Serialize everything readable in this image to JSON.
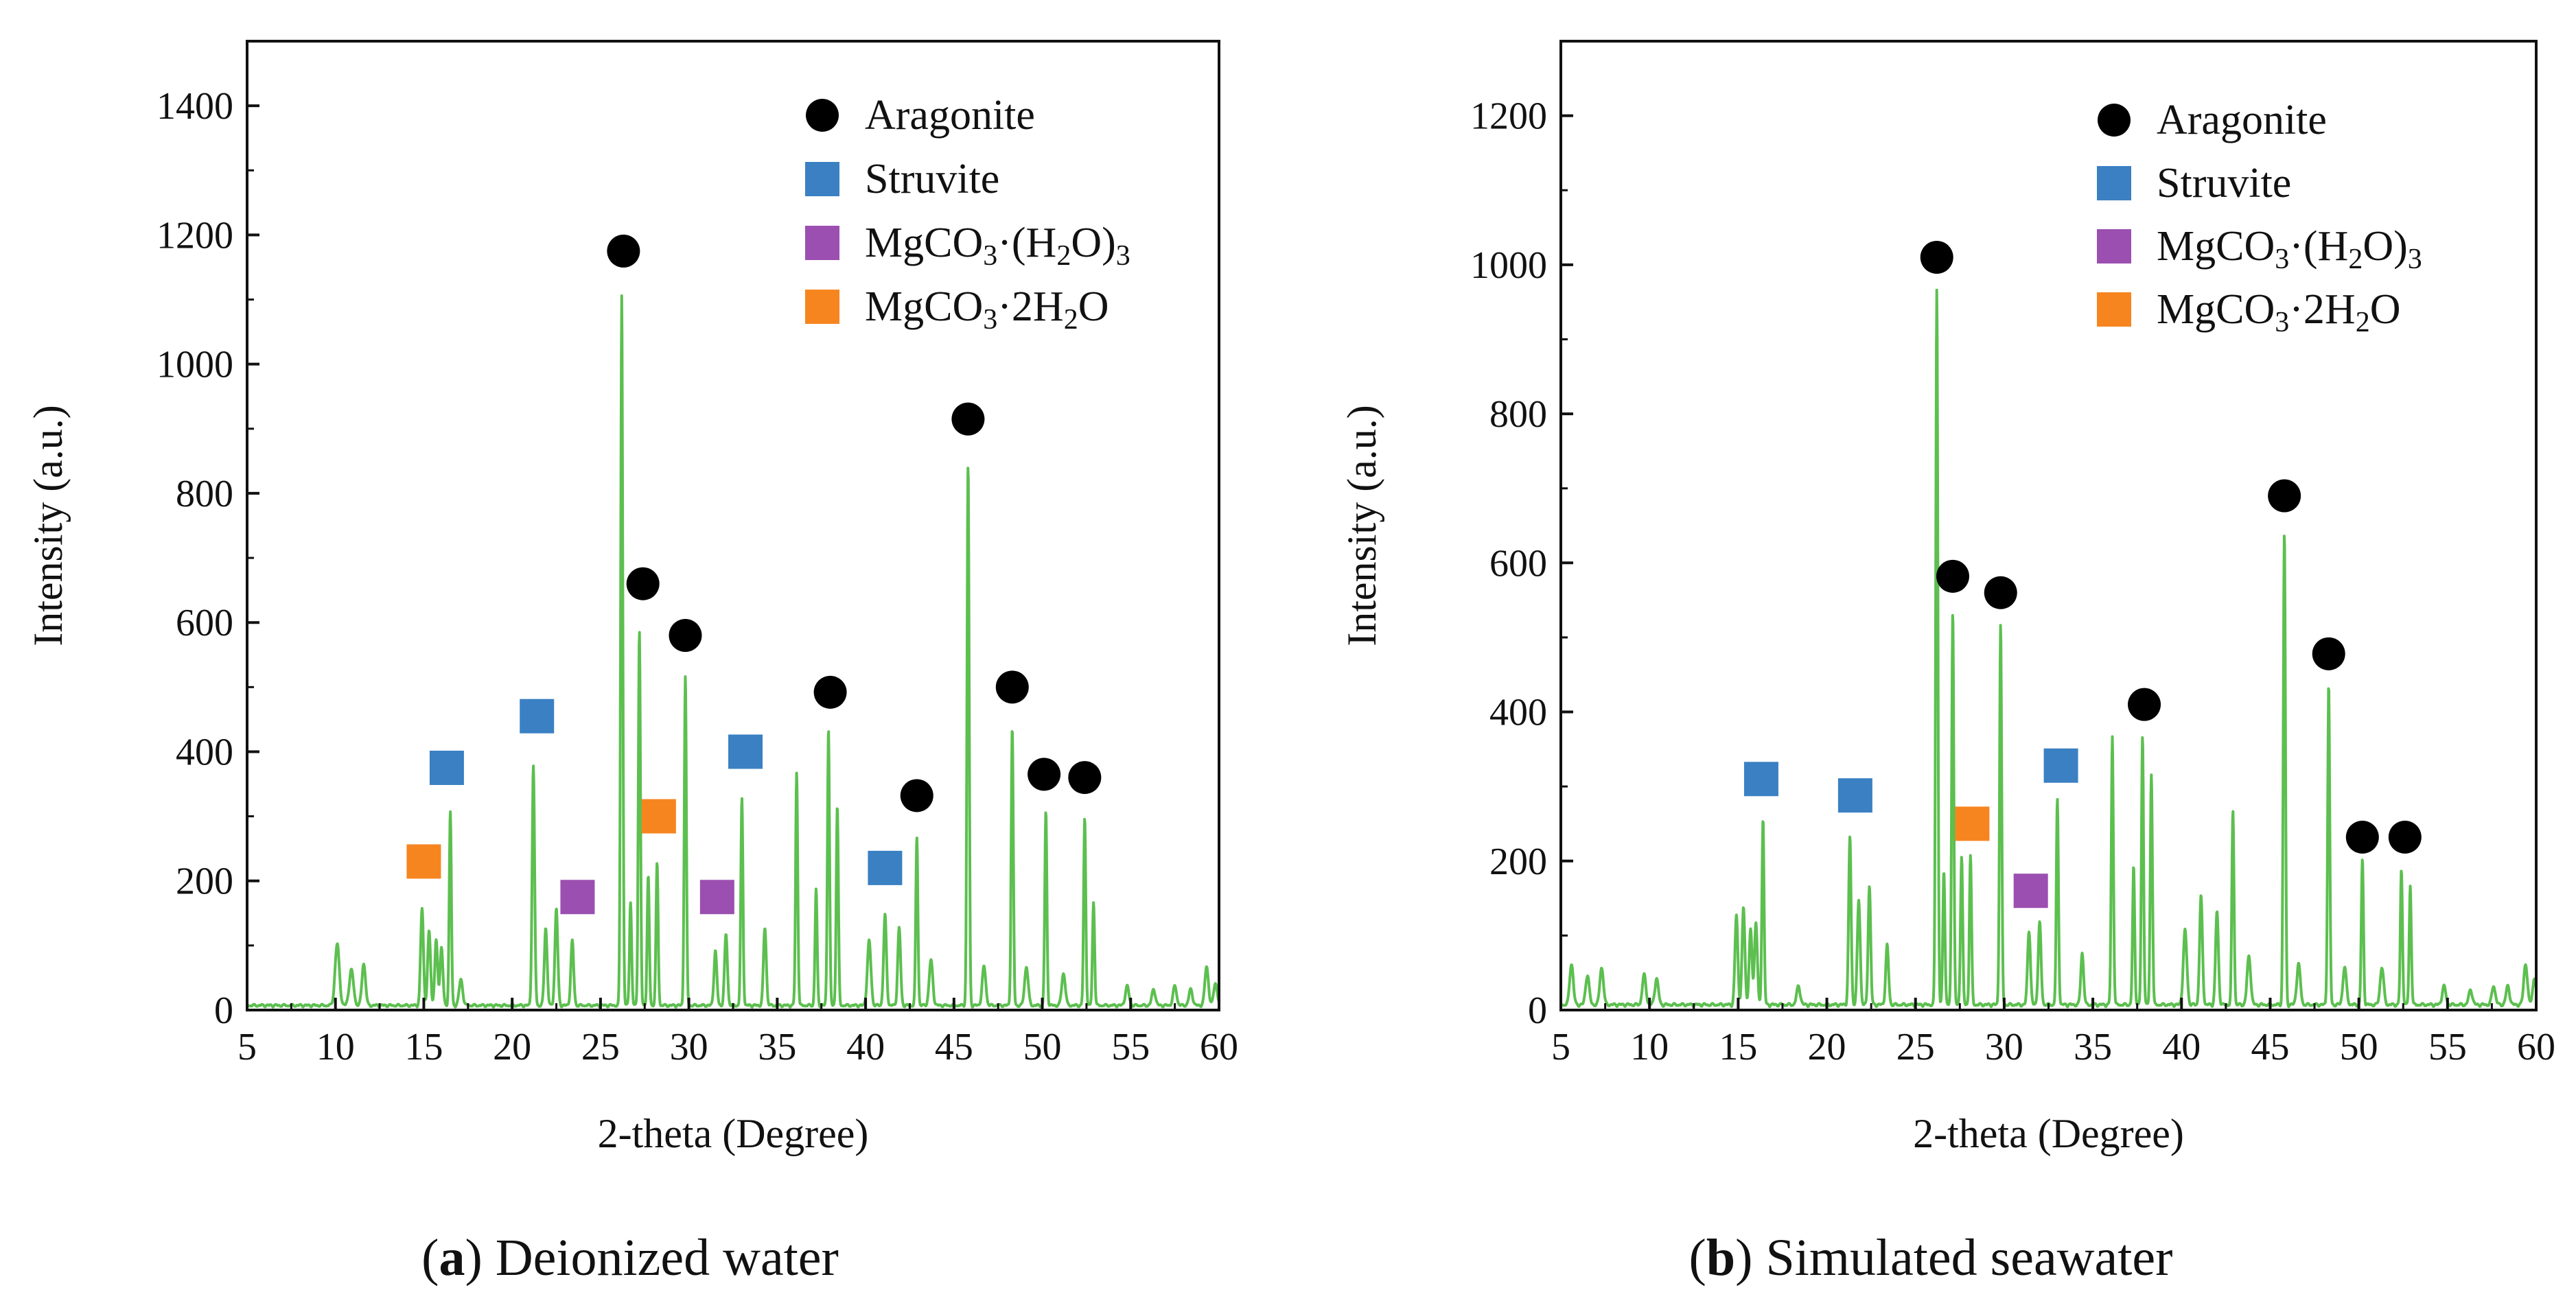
{
  "figure": {
    "caption_a": {
      "letter": "a",
      "text": " Deionized water"
    },
    "caption_b": {
      "letter": "b",
      "text": " Simulated seawater"
    }
  },
  "colors": {
    "pattern_line": "#5cbf4f",
    "aragonite": "#000000",
    "struvite": "#3a80c3",
    "mgco3_h2o3": "#9b4fb0",
    "mgco3_2h2o": "#f7851f",
    "axis": "#111111"
  },
  "chart_data": [
    {
      "type": "line",
      "panel": "a",
      "title": "",
      "xlabel": "2-theta (Degree)",
      "ylabel": "Intensity (a.u.)",
      "xlim": [
        5,
        60
      ],
      "ylim": [
        0,
        1500
      ],
      "xticks": [
        5,
        10,
        15,
        20,
        25,
        30,
        35,
        40,
        45,
        50,
        55,
        60
      ],
      "yticks": [
        0,
        200,
        400,
        600,
        800,
        1000,
        1200,
        1400
      ],
      "legend": {
        "position": "top-right",
        "entries": [
          {
            "label": "Aragonite",
            "marker": "circle",
            "color": "#000000",
            "key": "aragonite"
          },
          {
            "label": "Struvite",
            "marker": "square",
            "color": "#3a80c3",
            "key": "struvite"
          },
          {
            "label": "MgCO",
            "sub1": "3",
            "mid": "·(H",
            "sub2": "2",
            "tail": "O)",
            "sub3": "3",
            "marker": "square",
            "color": "#9b4fb0",
            "key": "mgco3_h2o3"
          },
          {
            "label": "MgCO",
            "sub1": "3",
            "mid": "·2H",
            "sub2": "2",
            "tail": "O",
            "sub3": "",
            "marker": "square",
            "color": "#f7851f",
            "key": "mgco3_2h2o"
          }
        ]
      },
      "series": [
        {
          "name": "XRD pattern",
          "color": "#5cbf4f",
          "peaks": [
            [
              10.1,
              95,
              0.12
            ],
            [
              10.9,
              55,
              0.12
            ],
            [
              11.6,
              65,
              0.1
            ],
            [
              14.9,
              150,
              0.08
            ],
            [
              15.3,
              115,
              0.08
            ],
            [
              15.7,
              100,
              0.08
            ],
            [
              16.0,
              90,
              0.08
            ],
            [
              16.5,
              300,
              0.06
            ],
            [
              17.1,
              40,
              0.1
            ],
            [
              21.2,
              370,
              0.07
            ],
            [
              21.9,
              120,
              0.08
            ],
            [
              22.5,
              150,
              0.08
            ],
            [
              23.4,
              100,
              0.08
            ],
            [
              26.2,
              1100,
              0.06
            ],
            [
              26.7,
              160,
              0.06
            ],
            [
              27.2,
              580,
              0.06
            ],
            [
              27.7,
              200,
              0.06
            ],
            [
              28.2,
              220,
              0.06
            ],
            [
              29.8,
              510,
              0.06
            ],
            [
              31.5,
              85,
              0.08
            ],
            [
              32.1,
              110,
              0.08
            ],
            [
              33.0,
              320,
              0.06
            ],
            [
              34.3,
              120,
              0.08
            ],
            [
              36.1,
              360,
              0.06
            ],
            [
              37.2,
              180,
              0.06
            ],
            [
              37.9,
              430,
              0.06
            ],
            [
              38.4,
              310,
              0.06
            ],
            [
              40.2,
              100,
              0.1
            ],
            [
              41.1,
              140,
              0.08
            ],
            [
              41.9,
              120,
              0.08
            ],
            [
              42.9,
              260,
              0.06
            ],
            [
              43.7,
              70,
              0.1
            ],
            [
              45.8,
              840,
              0.06
            ],
            [
              46.7,
              60,
              0.1
            ],
            [
              48.3,
              430,
              0.06
            ],
            [
              49.1,
              60,
              0.1
            ],
            [
              50.2,
              300,
              0.06
            ],
            [
              51.2,
              50,
              0.1
            ],
            [
              52.4,
              290,
              0.06
            ],
            [
              52.9,
              160,
              0.06
            ],
            [
              54.8,
              30,
              0.1
            ],
            [
              56.3,
              25,
              0.1
            ],
            [
              57.5,
              30,
              0.1
            ],
            [
              58.4,
              25,
              0.1
            ],
            [
              59.3,
              60,
              0.1
            ],
            [
              59.8,
              35,
              0.1
            ]
          ],
          "background": 4
        }
      ],
      "phase_markers": [
        {
          "phase": "aragonite",
          "x": 26.3,
          "y": 1175
        },
        {
          "phase": "aragonite",
          "x": 27.4,
          "y": 660
        },
        {
          "phase": "aragonite",
          "x": 29.8,
          "y": 580
        },
        {
          "phase": "aragonite",
          "x": 38.0,
          "y": 492
        },
        {
          "phase": "aragonite",
          "x": 42.9,
          "y": 332
        },
        {
          "phase": "aragonite",
          "x": 45.8,
          "y": 915
        },
        {
          "phase": "aragonite",
          "x": 48.3,
          "y": 500
        },
        {
          "phase": "aragonite",
          "x": 50.1,
          "y": 365
        },
        {
          "phase": "aragonite",
          "x": 52.4,
          "y": 360
        },
        {
          "phase": "struvite",
          "x": 16.3,
          "y": 375
        },
        {
          "phase": "struvite",
          "x": 21.4,
          "y": 455
        },
        {
          "phase": "struvite",
          "x": 33.2,
          "y": 400
        },
        {
          "phase": "struvite",
          "x": 41.1,
          "y": 220
        },
        {
          "phase": "mgco3_h2o3",
          "x": 23.7,
          "y": 175
        },
        {
          "phase": "mgco3_h2o3",
          "x": 31.6,
          "y": 175
        },
        {
          "phase": "mgco3_2h2o",
          "x": 15.0,
          "y": 230
        },
        {
          "phase": "mgco3_2h2o",
          "x": 28.3,
          "y": 300
        }
      ]
    },
    {
      "type": "line",
      "panel": "b",
      "title": "",
      "xlabel": "2-theta (Degree)",
      "ylabel": "Intensity (a.u.)",
      "xlim": [
        5,
        60
      ],
      "ylim": [
        0,
        1300
      ],
      "xticks": [
        5,
        10,
        15,
        20,
        25,
        30,
        35,
        40,
        45,
        50,
        55,
        60
      ],
      "yticks": [
        0,
        200,
        400,
        600,
        800,
        1000,
        1200
      ],
      "legend": {
        "position": "top-right",
        "entries": [
          {
            "label": "Aragonite",
            "marker": "circle",
            "color": "#000000",
            "key": "aragonite"
          },
          {
            "label": "Struvite",
            "marker": "square",
            "color": "#3a80c3",
            "key": "struvite"
          },
          {
            "label": "MgCO",
            "sub1": "3",
            "mid": "·(H",
            "sub2": "2",
            "tail": "O)",
            "sub3": "3",
            "marker": "square",
            "color": "#9b4fb0",
            "key": "mgco3_h2o3"
          },
          {
            "label": "MgCO",
            "sub1": "3",
            "mid": "·2H",
            "sub2": "2",
            "tail": "O",
            "sub3": "",
            "marker": "square",
            "color": "#f7851f",
            "key": "mgco3_2h2o"
          }
        ]
      },
      "series": [
        {
          "name": "XRD pattern",
          "color": "#5cbf4f",
          "peaks": [
            [
              5.6,
              55,
              0.1
            ],
            [
              6.5,
              40,
              0.1
            ],
            [
              7.3,
              50,
              0.1
            ],
            [
              9.7,
              40,
              0.1
            ],
            [
              10.4,
              35,
              0.1
            ],
            [
              14.9,
              120,
              0.08
            ],
            [
              15.3,
              130,
              0.08
            ],
            [
              15.7,
              100,
              0.08
            ],
            [
              16.0,
              110,
              0.08
            ],
            [
              16.4,
              250,
              0.06
            ],
            [
              18.4,
              25,
              0.1
            ],
            [
              21.3,
              225,
              0.07
            ],
            [
              21.8,
              140,
              0.08
            ],
            [
              22.4,
              160,
              0.07
            ],
            [
              23.4,
              80,
              0.08
            ],
            [
              26.2,
              960,
              0.06
            ],
            [
              26.6,
              180,
              0.06
            ],
            [
              27.1,
              530,
              0.06
            ],
            [
              27.6,
              200,
              0.06
            ],
            [
              28.1,
              200,
              0.06
            ],
            [
              29.8,
              510,
              0.06
            ],
            [
              31.4,
              100,
              0.08
            ],
            [
              32.0,
              110,
              0.08
            ],
            [
              33.0,
              275,
              0.06
            ],
            [
              34.4,
              70,
              0.08
            ],
            [
              36.1,
              360,
              0.06
            ],
            [
              37.3,
              185,
              0.06
            ],
            [
              37.8,
              360,
              0.06
            ],
            [
              38.3,
              310,
              0.06
            ],
            [
              40.2,
              100,
              0.1
            ],
            [
              41.1,
              145,
              0.08
            ],
            [
              42.0,
              125,
              0.08
            ],
            [
              42.9,
              260,
              0.06
            ],
            [
              43.8,
              65,
              0.1
            ],
            [
              45.8,
              635,
              0.06
            ],
            [
              46.6,
              55,
              0.1
            ],
            [
              48.3,
              430,
              0.06
            ],
            [
              49.2,
              50,
              0.1
            ],
            [
              50.2,
              195,
              0.06
            ],
            [
              51.3,
              50,
              0.1
            ],
            [
              52.4,
              180,
              0.06
            ],
            [
              52.9,
              160,
              0.06
            ],
            [
              54.8,
              25,
              0.1
            ],
            [
              56.3,
              20,
              0.1
            ],
            [
              57.6,
              25,
              0.1
            ],
            [
              58.4,
              25,
              0.1
            ],
            [
              59.4,
              55,
              0.1
            ],
            [
              59.9,
              35,
              0.1
            ]
          ],
          "background": 4
        }
      ],
      "phase_markers": [
        {
          "phase": "aragonite",
          "x": 26.2,
          "y": 1010
        },
        {
          "phase": "aragonite",
          "x": 27.1,
          "y": 582
        },
        {
          "phase": "aragonite",
          "x": 29.8,
          "y": 560
        },
        {
          "phase": "aragonite",
          "x": 37.9,
          "y": 410
        },
        {
          "phase": "aragonite",
          "x": 45.8,
          "y": 690
        },
        {
          "phase": "aragonite",
          "x": 48.3,
          "y": 478
        },
        {
          "phase": "aragonite",
          "x": 50.2,
          "y": 232
        },
        {
          "phase": "aragonite",
          "x": 52.6,
          "y": 232
        },
        {
          "phase": "struvite",
          "x": 16.3,
          "y": 310
        },
        {
          "phase": "struvite",
          "x": 21.6,
          "y": 288
        },
        {
          "phase": "struvite",
          "x": 33.2,
          "y": 328
        },
        {
          "phase": "mgco3_h2o3",
          "x": 31.5,
          "y": 160
        },
        {
          "phase": "mgco3_2h2o",
          "x": 28.2,
          "y": 250
        }
      ]
    }
  ]
}
